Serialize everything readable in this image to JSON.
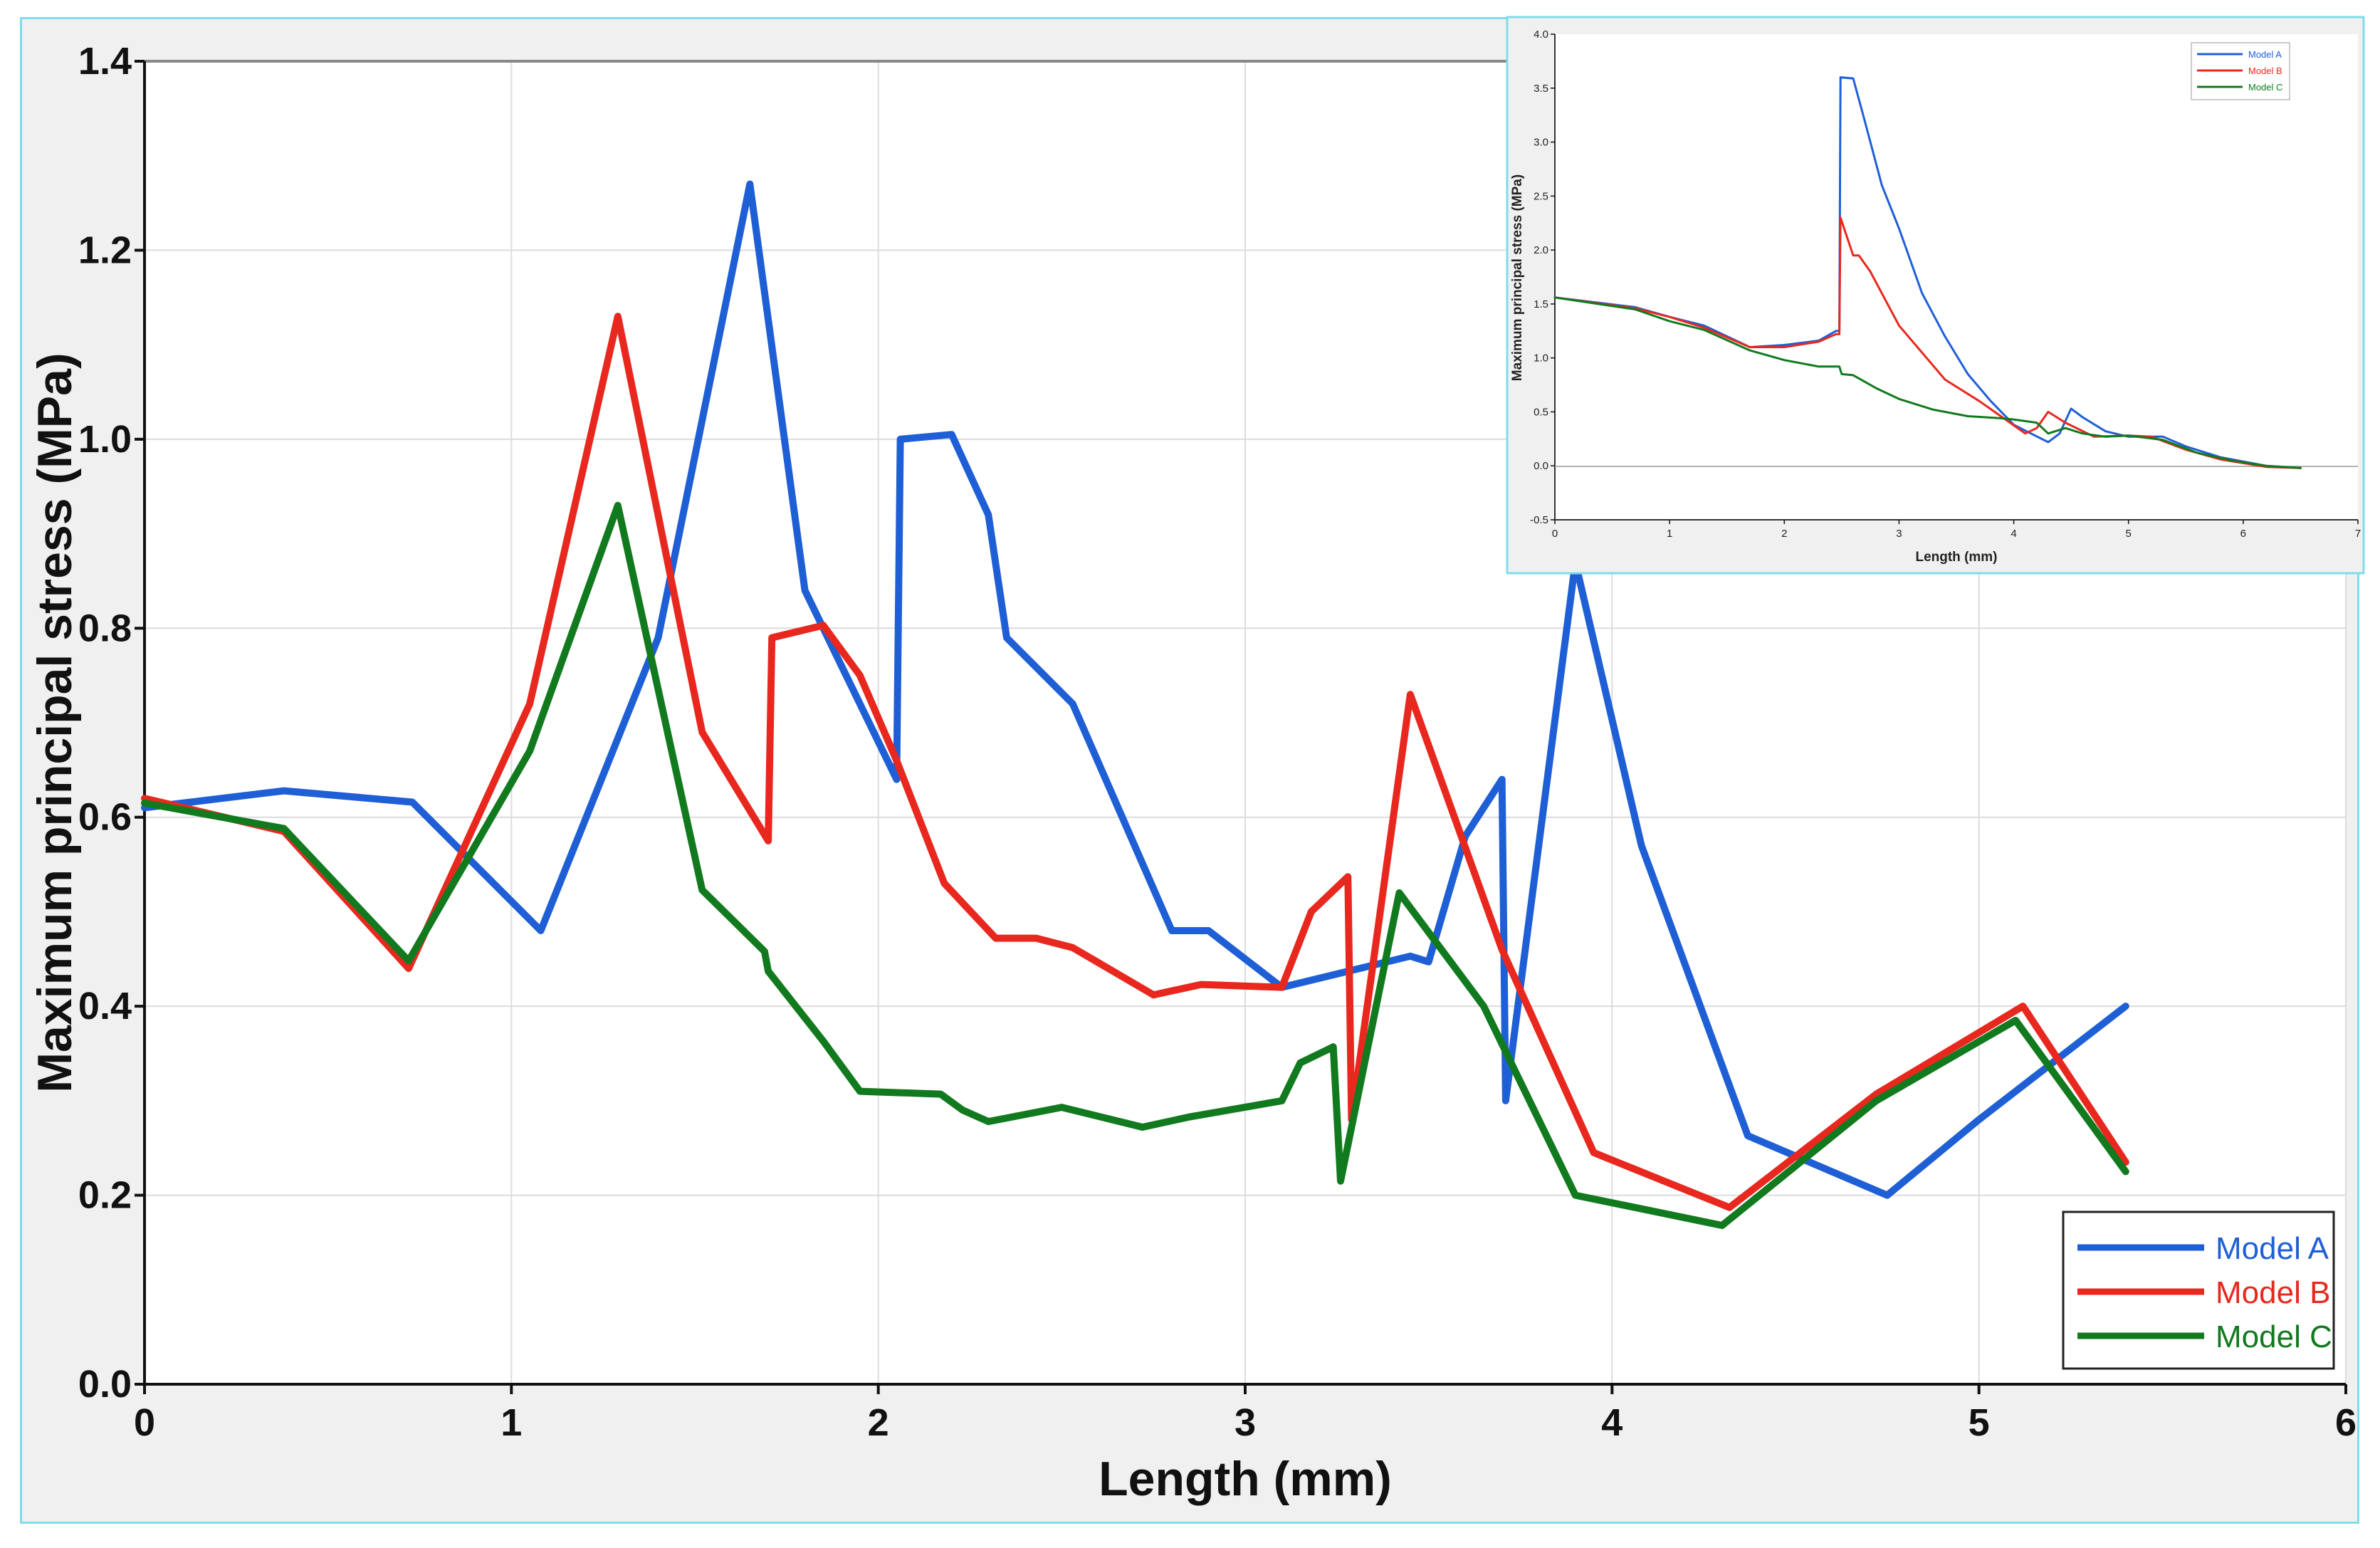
{
  "chart_data": [
    {
      "type": "line",
      "xlabel": "Length (mm)",
      "ylabel": "Maximum principal stress (MPa)",
      "xlim": [
        0,
        6
      ],
      "ylim": [
        0,
        1.4
      ],
      "xticks": [
        "0",
        "1",
        "2",
        "3",
        "4",
        "5",
        "6"
      ],
      "yticks": [
        "0.0",
        "0.2",
        "0.4",
        "0.6",
        "0.8",
        "1.0",
        "1.2",
        "1.4"
      ],
      "grid": true,
      "legend": "bottom-right",
      "series": [
        {
          "name": "Model A",
          "color": "#1f5fd6",
          "points": [
            [
              0,
              0.61
            ],
            [
              0.38,
              0.628
            ],
            [
              0.73,
              0.616
            ],
            [
              1.08,
              0.48
            ],
            [
              1.4,
              0.79
            ],
            [
              1.65,
              1.27
            ],
            [
              1.8,
              0.84
            ],
            [
              1.9,
              0.76
            ],
            [
              2.05,
              0.64
            ],
            [
              2.06,
              1.0
            ],
            [
              2.2,
              1.005
            ],
            [
              2.3,
              0.92
            ],
            [
              2.35,
              0.79
            ],
            [
              2.53,
              0.72
            ],
            [
              2.8,
              0.48
            ],
            [
              2.9,
              0.48
            ],
            [
              3.1,
              0.42
            ],
            [
              3.45,
              0.453
            ],
            [
              3.5,
              0.447
            ],
            [
              3.6,
              0.58
            ],
            [
              3.7,
              0.64
            ],
            [
              3.71,
              0.3
            ],
            [
              3.9,
              0.87
            ],
            [
              4.08,
              0.57
            ],
            [
              4.37,
              0.263
            ],
            [
              4.75,
              0.2
            ],
            [
              5.0,
              0.28
            ],
            [
              5.4,
              0.4
            ]
          ]
        },
        {
          "name": "Model B",
          "color": "#e8281e",
          "points": [
            [
              0,
              0.62
            ],
            [
              0.38,
              0.585
            ],
            [
              0.72,
              0.44
            ],
            [
              1.05,
              0.72
            ],
            [
              1.29,
              1.13
            ],
            [
              1.52,
              0.69
            ],
            [
              1.7,
              0.575
            ],
            [
              1.71,
              0.79
            ],
            [
              1.85,
              0.803
            ],
            [
              1.95,
              0.75
            ],
            [
              2.05,
              0.66
            ],
            [
              2.18,
              0.53
            ],
            [
              2.32,
              0.472
            ],
            [
              2.43,
              0.472
            ],
            [
              2.53,
              0.462
            ],
            [
              2.75,
              0.412
            ],
            [
              2.88,
              0.423
            ],
            [
              3.1,
              0.42
            ],
            [
              3.18,
              0.5
            ],
            [
              3.28,
              0.537
            ],
            [
              3.29,
              0.28
            ],
            [
              3.45,
              0.73
            ],
            [
              3.7,
              0.46
            ],
            [
              3.95,
              0.245
            ],
            [
              4.32,
              0.187
            ],
            [
              4.72,
              0.307
            ],
            [
              5.12,
              0.4
            ],
            [
              5.4,
              0.235
            ]
          ]
        },
        {
          "name": "Model C",
          "color": "#127a1e",
          "points": [
            [
              0,
              0.615
            ],
            [
              0.38,
              0.588
            ],
            [
              0.72,
              0.448
            ],
            [
              1.05,
              0.67
            ],
            [
              1.29,
              0.93
            ],
            [
              1.52,
              0.523
            ],
            [
              1.69,
              0.458
            ],
            [
              1.7,
              0.437
            ],
            [
              1.85,
              0.363
            ],
            [
              1.95,
              0.31
            ],
            [
              2.17,
              0.307
            ],
            [
              2.23,
              0.29
            ],
            [
              2.3,
              0.278
            ],
            [
              2.5,
              0.293
            ],
            [
              2.72,
              0.272
            ],
            [
              2.85,
              0.283
            ],
            [
              3.1,
              0.3
            ],
            [
              3.15,
              0.34
            ],
            [
              3.24,
              0.357
            ],
            [
              3.26,
              0.215
            ],
            [
              3.42,
              0.52
            ],
            [
              3.65,
              0.4
            ],
            [
              3.9,
              0.2
            ],
            [
              4.3,
              0.168
            ],
            [
              4.72,
              0.3
            ],
            [
              5.1,
              0.385
            ],
            [
              5.4,
              0.225
            ]
          ]
        }
      ]
    },
    {
      "type": "line",
      "xlabel": "Length (mm)",
      "ylabel": "Maximum principal stress (MPa)",
      "xlim": [
        0,
        7
      ],
      "ylim": [
        -0.5,
        4.0
      ],
      "xticks": [
        "0",
        "1",
        "2",
        "3",
        "4",
        "5",
        "6",
        "7"
      ],
      "yticks": [
        "-0.5",
        "0.0",
        "0.5",
        "1.0",
        "1.5",
        "2.0",
        "2.5",
        "3.0",
        "3.5",
        "4.0"
      ],
      "grid": false,
      "legend": "top-right",
      "series": [
        {
          "name": "Model A",
          "color": "#1f5fd6",
          "points": [
            [
              0,
              1.56
            ],
            [
              0.7,
              1.47
            ],
            [
              1.0,
              1.38
            ],
            [
              1.3,
              1.3
            ],
            [
              1.7,
              1.1
            ],
            [
              2.0,
              1.12
            ],
            [
              2.3,
              1.16
            ],
            [
              2.45,
              1.25
            ],
            [
              2.48,
              1.25
            ],
            [
              2.49,
              3.6
            ],
            [
              2.6,
              3.59
            ],
            [
              2.7,
              3.2
            ],
            [
              2.85,
              2.6
            ],
            [
              3.0,
              2.2
            ],
            [
              3.2,
              1.6
            ],
            [
              3.4,
              1.2
            ],
            [
              3.6,
              0.85
            ],
            [
              3.8,
              0.6
            ],
            [
              4.0,
              0.38
            ],
            [
              4.15,
              0.3
            ],
            [
              4.3,
              0.22
            ],
            [
              4.4,
              0.3
            ],
            [
              4.5,
              0.53
            ],
            [
              4.6,
              0.45
            ],
            [
              4.8,
              0.32
            ],
            [
              5.0,
              0.27
            ],
            [
              5.3,
              0.27
            ],
            [
              5.5,
              0.18
            ],
            [
              5.8,
              0.08
            ],
            [
              6.2,
              0.0
            ],
            [
              6.5,
              -0.02
            ]
          ]
        },
        {
          "name": "Model B",
          "color": "#e8281e",
          "points": [
            [
              0,
              1.56
            ],
            [
              0.7,
              1.46
            ],
            [
              1.0,
              1.38
            ],
            [
              1.3,
              1.28
            ],
            [
              1.7,
              1.1
            ],
            [
              2.0,
              1.1
            ],
            [
              2.3,
              1.15
            ],
            [
              2.45,
              1.22
            ],
            [
              2.48,
              1.22
            ],
            [
              2.49,
              2.3
            ],
            [
              2.6,
              1.95
            ],
            [
              2.65,
              1.95
            ],
            [
              2.75,
              1.8
            ],
            [
              2.9,
              1.5
            ],
            [
              3.0,
              1.3
            ],
            [
              3.2,
              1.05
            ],
            [
              3.4,
              0.8
            ],
            [
              3.7,
              0.6
            ],
            [
              3.9,
              0.45
            ],
            [
              4.1,
              0.3
            ],
            [
              4.2,
              0.35
            ],
            [
              4.3,
              0.5
            ],
            [
              4.45,
              0.4
            ],
            [
              4.7,
              0.27
            ],
            [
              5.0,
              0.28
            ],
            [
              5.2,
              0.27
            ],
            [
              5.5,
              0.15
            ],
            [
              5.8,
              0.06
            ],
            [
              6.2,
              -0.01
            ],
            [
              6.5,
              -0.02
            ]
          ]
        },
        {
          "name": "Model C",
          "color": "#127a1e",
          "points": [
            [
              0,
              1.56
            ],
            [
              0.7,
              1.45
            ],
            [
              1.0,
              1.34
            ],
            [
              1.3,
              1.26
            ],
            [
              1.7,
              1.07
            ],
            [
              2.0,
              0.98
            ],
            [
              2.3,
              0.92
            ],
            [
              2.48,
              0.92
            ],
            [
              2.5,
              0.85
            ],
            [
              2.6,
              0.84
            ],
            [
              2.8,
              0.72
            ],
            [
              3.0,
              0.62
            ],
            [
              3.3,
              0.52
            ],
            [
              3.6,
              0.46
            ],
            [
              3.9,
              0.44
            ],
            [
              4.0,
              0.43
            ],
            [
              4.2,
              0.4
            ],
            [
              4.3,
              0.3
            ],
            [
              4.45,
              0.35
            ],
            [
              4.6,
              0.3
            ],
            [
              4.8,
              0.27
            ],
            [
              5.0,
              0.28
            ],
            [
              5.3,
              0.24
            ],
            [
              5.6,
              0.12
            ],
            [
              5.9,
              0.05
            ],
            [
              6.2,
              0.0
            ],
            [
              6.5,
              -0.02
            ]
          ]
        }
      ]
    }
  ]
}
